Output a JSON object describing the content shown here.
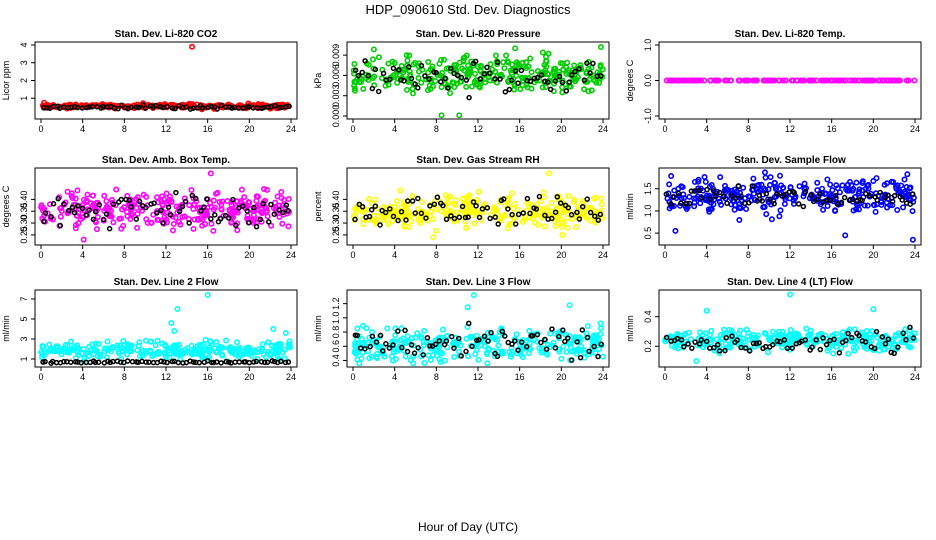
{
  "figure": {
    "title": "HDP_090610  Std. Dev. Diagnostics",
    "xlabel": "Hour of Day (UTC)"
  },
  "chart_data": [
    {
      "type": "scatter",
      "title": "Stan. Dev. Li-820 CO2",
      "ylabel": "Licor ppm",
      "xlim": [
        0,
        24
      ],
      "ylim": [
        0,
        4
      ],
      "xticks": [
        0,
        4,
        8,
        12,
        16,
        20,
        24
      ],
      "yticks": [
        {
          "v": 1,
          "l": "1"
        },
        {
          "v": 2,
          "l": "2"
        },
        {
          "v": 3,
          "l": "3"
        },
        {
          "v": 4,
          "l": "4"
        }
      ],
      "color": "#ff0000",
      "base": 0.55,
      "spread": 0.08,
      "count": 260,
      "extra_points": [
        [
          14.5,
          3.9
        ],
        [
          0.3,
          0.75
        ],
        [
          9.8,
          0.72
        ]
      ],
      "black_base": 0.5,
      "black_spread": 0.08
    },
    {
      "type": "scatter",
      "title": "Stan. Dev. Li-820 Pressure",
      "ylabel": "kPa",
      "xlim": [
        0,
        24
      ],
      "ylim": [
        0,
        0.0105
      ],
      "xticks": [
        0,
        4,
        8,
        12,
        16,
        20,
        24
      ],
      "yticks": [
        {
          "v": 0,
          "l": "0.000"
        },
        {
          "v": 0.003,
          "l": "0.003"
        },
        {
          "v": 0.006,
          "l": "0.006"
        },
        {
          "v": 0.009,
          "l": "0.009"
        }
      ],
      "color": "#00cc00",
      "base": 0.0062,
      "spread": 0.0018,
      "count": 320,
      "extra_points": [
        [
          8.5,
          0.0001
        ],
        [
          10.2,
          0.0001
        ],
        [
          23.8,
          0.0102
        ]
      ],
      "black_base": 0.0058,
      "black_spread": 0.0015
    },
    {
      "type": "scatter",
      "title": "Stan. Dev. Li-820 Temp.",
      "ylabel": "degrees C",
      "xlim": [
        0,
        24
      ],
      "ylim": [
        -1,
        1
      ],
      "xticks": [
        0,
        4,
        8,
        12,
        16,
        20,
        24
      ],
      "yticks": [
        {
          "v": -1,
          "l": "-1.0"
        },
        {
          "v": 0,
          "l": "0.0"
        },
        {
          "v": 1,
          "l": "1.0"
        }
      ],
      "color": "#ff00ff",
      "base": 0.0,
      "spread": 0.0,
      "count": 150,
      "extra_points": [],
      "black_base": 0.0,
      "black_spread": 0.0
    },
    {
      "type": "scatter",
      "title": "Stan. Dev. Amb. Box Temp.",
      "ylabel": "degrees C",
      "xlim": [
        0,
        24
      ],
      "ylim": [
        0.22,
        0.52
      ],
      "xticks": [
        0,
        4,
        8,
        12,
        16,
        20,
        24
      ],
      "yticks": [
        {
          "v": 0.25,
          "l": "0.25"
        },
        {
          "v": 0.3,
          "l": "0.30"
        },
        {
          "v": 0.35,
          "l": "0.35"
        },
        {
          "v": 0.4,
          "l": "0.40"
        }
      ],
      "color": "#ff00ff",
      "base": 0.36,
      "spread": 0.055,
      "count": 300,
      "extra_points": [
        [
          16.3,
          0.51
        ],
        [
          4.1,
          0.23
        ]
      ],
      "black_base": 0.35,
      "black_spread": 0.05
    },
    {
      "type": "scatter",
      "title": "Stan. Dev. Gas Stream RH",
      "ylabel": "percent",
      "xlim": [
        0,
        24
      ],
      "ylim": [
        0.22,
        0.52
      ],
      "xticks": [
        0,
        4,
        8,
        12,
        16,
        20,
        24
      ],
      "yticks": [
        {
          "v": 0.25,
          "l": "0.25"
        },
        {
          "v": 0.3,
          "l": "0.30"
        },
        {
          "v": 0.35,
          "l": "0.35"
        },
        {
          "v": 0.4,
          "l": "0.40"
        }
      ],
      "color": "#ffff00",
      "base": 0.35,
      "spread": 0.05,
      "count": 300,
      "extra_points": [
        [
          18.8,
          0.51
        ],
        [
          7.7,
          0.24
        ],
        [
          20.1,
          0.25
        ]
      ],
      "black_base": 0.35,
      "black_spread": 0.045
    },
    {
      "type": "scatter",
      "title": "Stan. Dev. Sample Flow",
      "ylabel": "ml/min",
      "xlim": [
        0,
        24
      ],
      "ylim": [
        0.3,
        1.9
      ],
      "xticks": [
        0,
        4,
        8,
        12,
        16,
        20,
        24
      ],
      "yticks": [
        {
          "v": 0.5,
          "l": "0.5"
        },
        {
          "v": 1,
          "l": "1.0"
        },
        {
          "v": 1.5,
          "l": "1.5"
        }
      ],
      "color": "#0000ff",
      "base": 1.35,
      "spread": 0.28,
      "count": 300,
      "extra_points": [
        [
          23.8,
          0.35
        ],
        [
          17.3,
          0.45
        ],
        [
          1.0,
          0.55
        ]
      ],
      "black_base": 1.3,
      "black_spread": 0.15
    },
    {
      "type": "scatter",
      "title": "Stan. Dev. Line 2 Flow",
      "ylabel": "ml/min",
      "xlim": [
        0,
        24
      ],
      "ylim": [
        0.5,
        7.6
      ],
      "xticks": [
        0,
        4,
        8,
        12,
        16,
        20,
        24
      ],
      "yticks": [
        {
          "v": 1,
          "l": "1"
        },
        {
          "v": 3,
          "l": "3"
        },
        {
          "v": 5,
          "l": "5"
        },
        {
          "v": 7,
          "l": "7"
        }
      ],
      "color": "#00ffff",
      "base": 1.9,
      "spread": 0.6,
      "count": 280,
      "extra_points": [
        [
          16.0,
          7.4
        ],
        [
          13.1,
          6.0
        ],
        [
          12.5,
          4.6
        ],
        [
          12.8,
          3.8
        ],
        [
          22.3,
          4.0
        ],
        [
          23.5,
          3.6
        ],
        [
          7.9,
          2.8
        ]
      ],
      "black_base": 0.7,
      "black_spread": 0.08
    },
    {
      "type": "scatter",
      "title": "Stan. Dev. Line 3 Flow",
      "ylabel": "ml/min",
      "xlim": [
        0,
        24
      ],
      "ylim": [
        0.35,
        1.35
      ],
      "xticks": [
        0,
        4,
        8,
        12,
        16,
        20,
        24
      ],
      "yticks": [
        {
          "v": 0.4,
          "l": "0.4"
        },
        {
          "v": 0.6,
          "l": "0.6"
        },
        {
          "v": 0.8,
          "l": "0.8"
        },
        {
          "v": 1.0,
          "l": "1.0"
        },
        {
          "v": 1.2,
          "l": "1.2"
        }
      ],
      "color": "#00ffff",
      "base": 0.62,
      "spread": 0.16,
      "count": 300,
      "extra_points": [
        [
          11.6,
          1.32
        ],
        [
          11.0,
          1.15
        ],
        [
          20.8,
          1.18
        ]
      ],
      "black_base": 0.65,
      "black_spread": 0.15
    },
    {
      "type": "scatter",
      "title": "Stan. Dev. Line 4 (LT) Flow",
      "ylabel": "ml/min",
      "xlim": [
        0,
        24
      ],
      "ylim": [
        0.08,
        0.56
      ],
      "xticks": [
        0,
        4,
        8,
        12,
        16,
        20,
        24
      ],
      "yticks": [
        {
          "v": 0.2,
          "l": "0.2"
        },
        {
          "v": 0.4,
          "l": "0.4"
        }
      ],
      "color": "#00ffff",
      "base": 0.24,
      "spread": 0.05,
      "count": 300,
      "extra_points": [
        [
          12.0,
          0.55
        ],
        [
          20.0,
          0.45
        ],
        [
          4.0,
          0.44
        ],
        [
          3.0,
          0.1
        ]
      ],
      "black_base": 0.22,
      "black_spread": 0.05
    }
  ]
}
